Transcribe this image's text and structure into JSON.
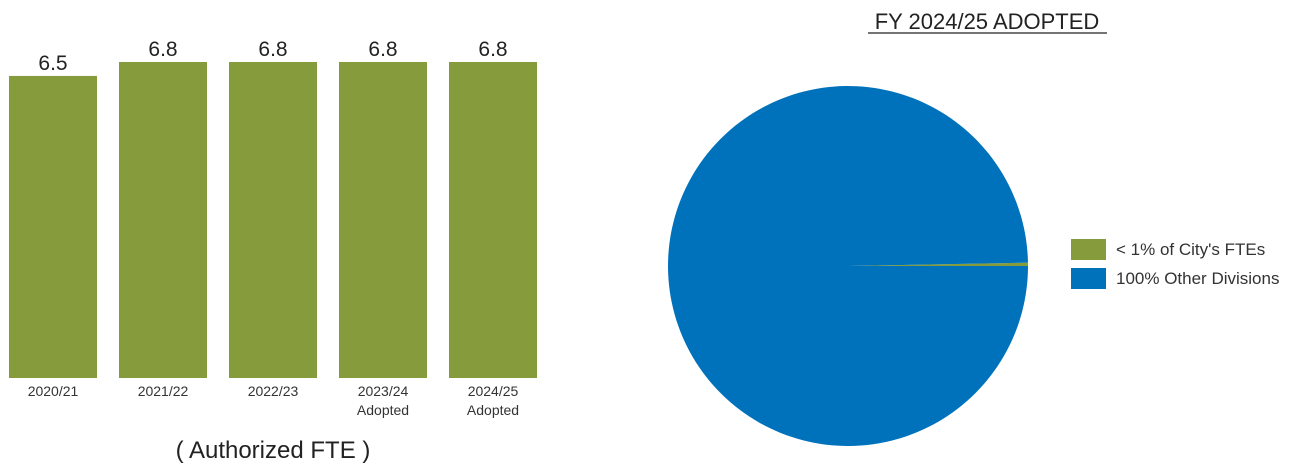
{
  "chart_data": [
    {
      "type": "bar",
      "title": "",
      "xlabel": "( Authorized FTE )",
      "ylabel": "",
      "categories": [
        [
          "2020/21"
        ],
        [
          "2021/22"
        ],
        [
          "2022/23"
        ],
        [
          "2023/24",
          "Adopted"
        ],
        [
          "2024/25",
          "Adopted"
        ]
      ],
      "values": [
        6.5,
        6.8,
        6.8,
        6.8,
        6.8
      ],
      "value_labels": [
        "6.5",
        "6.8",
        "6.8",
        "6.8",
        "6.8"
      ],
      "ylim": [
        0,
        6.8
      ],
      "grid": false,
      "color": "#869b3c"
    },
    {
      "type": "pie",
      "title": "FY 2024/25 ADOPTED",
      "slices": [
        {
          "label": "< 1% of City's FTEs",
          "value": 0.3,
          "color": "#869b3c"
        },
        {
          "label": "100% Other Divisions",
          "value": 99.7,
          "color": "#0072bc"
        }
      ],
      "legend_position": "right"
    }
  ]
}
